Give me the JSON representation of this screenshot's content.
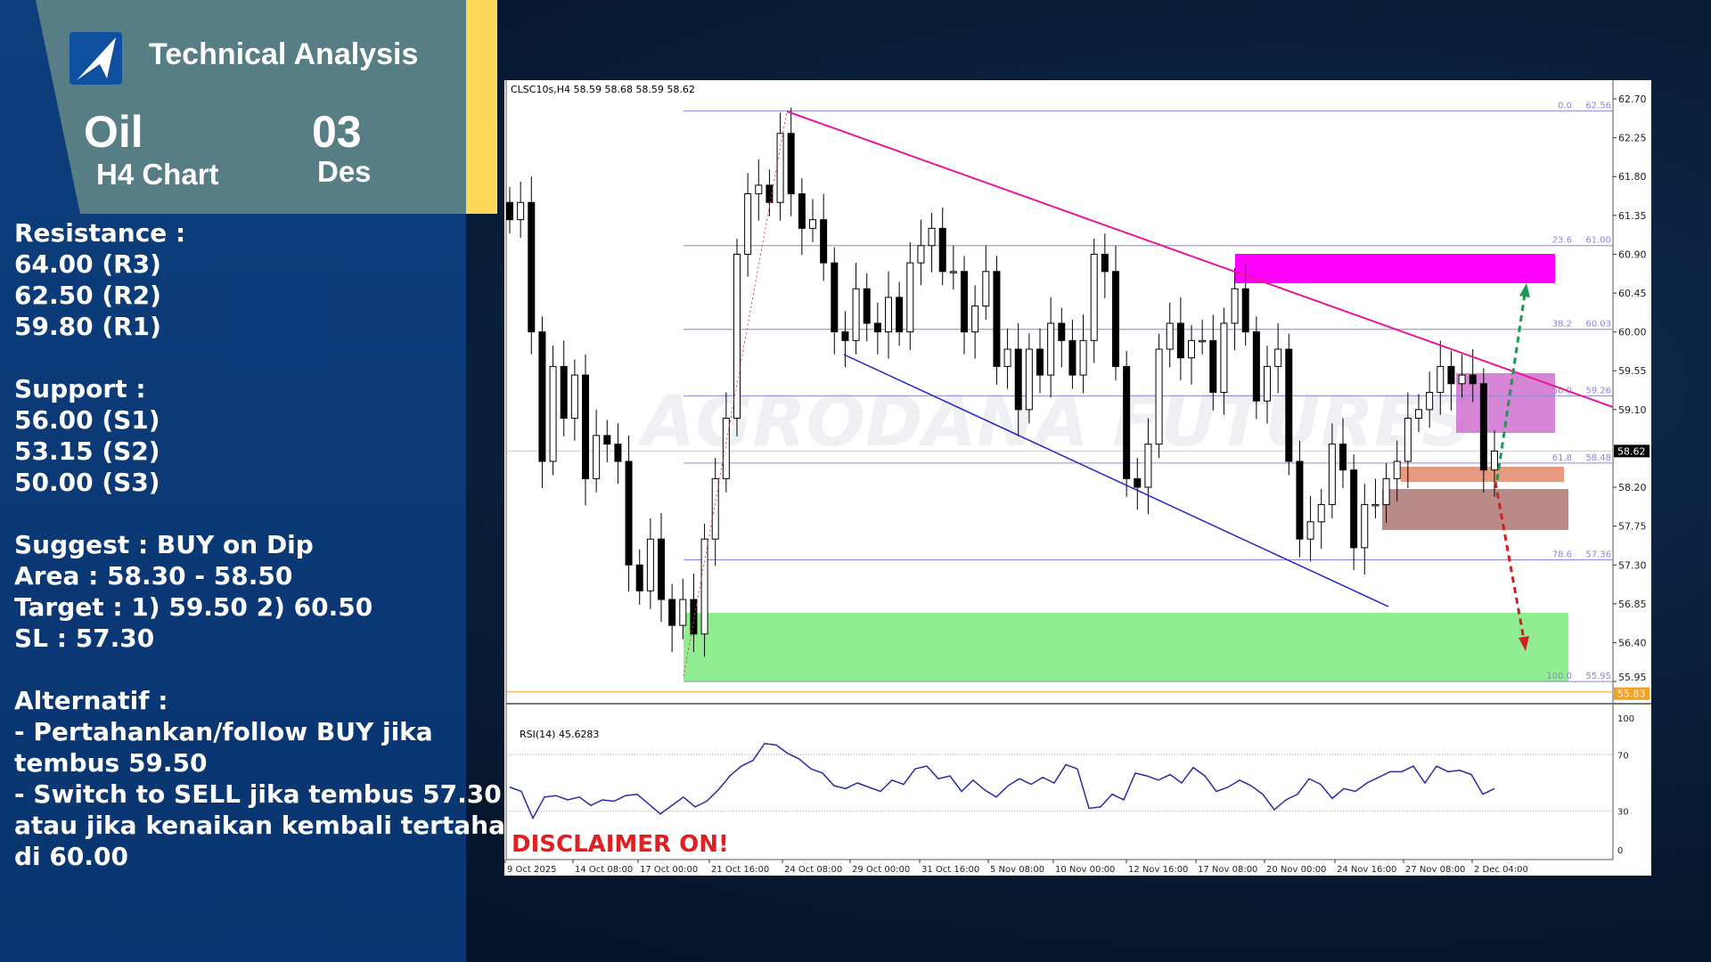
{
  "header": {
    "title": "Technical Analysis",
    "instrument": "Oil",
    "timeframe": "H4 Chart",
    "day": "03",
    "month": "Des"
  },
  "notes": {
    "resistance_label": "Resistance :",
    "resistance": [
      "64.00 (R3)",
      "62.50 (R2)",
      "59.80 (R1)"
    ],
    "support_label": "Support :",
    "support": [
      "56.00 (S1)",
      "53.15 (S2)",
      "50.00 (S3)"
    ],
    "suggest": "Suggest :  BUY on Dip",
    "area": "Area : 58.30 - 58.50",
    "target": "Target : 1) 59.50 2) 60.50",
    "sl": "SL : 57.30",
    "alt_label": "Alternatif :",
    "alt": [
      "- Pertahankan/follow BUY jika",
      "tembus 59.50",
      "- Switch to SELL jika tembus 57.30",
      "atau jika kenaikan kembali tertahan",
      "di 60.00"
    ]
  },
  "chart_data": {
    "type": "candlestick",
    "symbol_line": "CLSC10s,H4  58.59 58.68 58.59 58.62",
    "watermark": "AGRODANA FUTURES",
    "disclaimer": "DISCLAIMER ON!",
    "ylim": [
      55.83,
      62.8
    ],
    "y_ticks": [
      "62.70",
      "62.25",
      "61.80",
      "61.35",
      "60.90",
      "60.45",
      "60.00",
      "59.55",
      "59.10",
      "58.20",
      "57.75",
      "57.30",
      "56.85",
      "56.40",
      "55.95"
    ],
    "current_price": "58.62",
    "orange_level": "55.83",
    "x_ticks": [
      "9 Oct 2025",
      "14 Oct 08:00",
      "17 Oct 00:00",
      "21 Oct 16:00",
      "24 Oct 08:00",
      "29 Oct 00:00",
      "31 Oct 16:00",
      "5 Nov 08:00",
      "10 Nov 00:00",
      "12 Nov 16:00",
      "17 Nov 08:00",
      "20 Nov 00:00",
      "24 Nov 16:00",
      "27 Nov 08:00",
      "2 Dec 04:00"
    ],
    "closes": [
      61.3,
      61.5,
      60.0,
      58.5,
      59.6,
      59.0,
      59.5,
      58.3,
      58.8,
      58.7,
      58.5,
      57.3,
      57.0,
      57.6,
      56.9,
      56.6,
      56.9,
      56.5,
      57.6,
      58.3,
      59.0,
      60.9,
      61.6,
      61.7,
      61.5,
      62.3,
      61.6,
      61.2,
      61.3,
      60.8,
      60.0,
      59.9,
      60.5,
      60.1,
      60.0,
      60.4,
      60.0,
      60.8,
      61.0,
      61.2,
      60.7,
      60.7,
      60.0,
      60.3,
      60.7,
      59.6,
      59.8,
      59.1,
      59.8,
      59.5,
      60.1,
      59.9,
      59.5,
      59.9,
      60.9,
      60.7,
      59.6,
      58.3,
      58.2,
      58.7,
      59.8,
      60.1,
      59.7,
      59.9,
      59.9,
      59.3,
      60.1,
      60.5,
      60.0,
      59.2,
      59.6,
      59.8,
      58.5,
      57.6,
      57.8,
      58.0,
      58.7,
      58.4,
      57.5,
      58.0,
      58.0,
      58.3,
      58.5,
      59.0,
      59.1,
      59.3,
      59.6,
      59.4,
      59.5,
      59.4,
      58.4,
      58.62
    ],
    "fibonacci": [
      {
        "level": "0.0",
        "price": "62.56"
      },
      {
        "level": "23.6",
        "price": "61.00"
      },
      {
        "level": "38.2",
        "price": "60.03"
      },
      {
        "level": "50.0",
        "price": "59.26"
      },
      {
        "level": "61.8",
        "price": "58.48"
      },
      {
        "level": "78.6",
        "price": "57.36"
      },
      {
        "level": "100.0",
        "price": "55.95"
      }
    ],
    "zones": [
      {
        "color": "#ff00ff"
      },
      {
        "color": "#d070d0"
      },
      {
        "color": "#e89a80"
      },
      {
        "color": "#b88a88"
      },
      {
        "color": "#90ee90"
      }
    ],
    "rsi": {
      "label": "RSI(14) 45.6283",
      "levels": [
        "100",
        "70",
        "30",
        "0"
      ],
      "values": [
        47,
        44,
        25,
        40,
        41,
        38,
        40,
        34,
        38,
        37,
        41,
        42,
        35,
        28,
        34,
        40,
        33,
        37,
        45,
        55,
        62,
        66,
        78,
        77,
        71,
        67,
        60,
        57,
        48,
        46,
        50,
        47,
        44,
        52,
        49,
        60,
        62,
        53,
        55,
        44,
        52,
        45,
        40,
        48,
        53,
        49,
        54,
        50,
        63,
        60,
        32,
        33,
        42,
        38,
        57,
        55,
        52,
        56,
        50,
        61,
        55,
        44,
        47,
        52,
        48,
        42,
        31,
        38,
        42,
        53,
        49,
        39,
        46,
        44,
        50,
        54,
        58,
        58,
        62,
        50,
        62,
        58,
        59,
        56,
        42,
        46
      ]
    }
  },
  "colors": {
    "panel": "#0c3e7c",
    "header": "#577e84",
    "accent": "#fdd85a",
    "trend_down": "#e8179a",
    "channel": "#2222cc",
    "fib": "#8c86d8",
    "rsi": "#2a2aa8"
  }
}
